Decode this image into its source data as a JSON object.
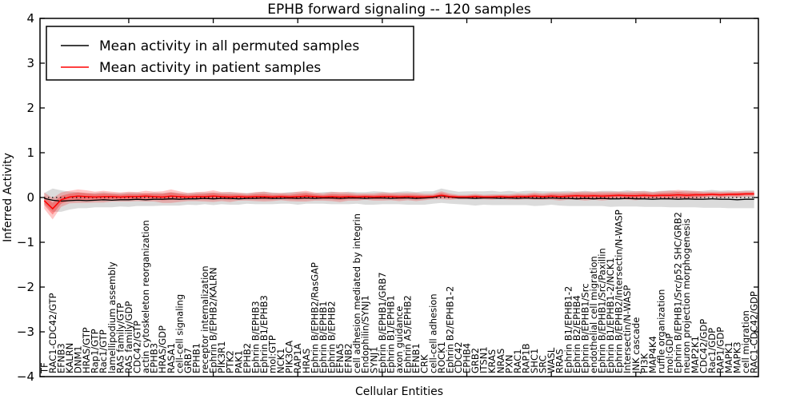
{
  "title": "EPHB forward signaling -- 120 samples",
  "axes": {
    "xlabel": "Cellular Entities",
    "ylabel": "Inferred Activity"
  },
  "legend": {
    "position": "upper left",
    "entries": [
      {
        "label": "Mean activity in all permuted samples",
        "color": "#000000"
      },
      {
        "label": "Mean activity in patient samples",
        "color": "#ff0000"
      }
    ]
  },
  "colors": {
    "permuted_line": "#000000",
    "patient_line": "#ff0000",
    "permuted_band": "#000000",
    "patient_band": "#ff0000",
    "reference_line": "#000000",
    "background": "#ffffff"
  },
  "chart_data": {
    "type": "line",
    "title": "EPHB forward signaling -- 120 samples",
    "xlabel": "Cellular Entities",
    "ylabel": "Inferred Activity",
    "ylim": [
      -4,
      4
    ],
    "yticks": [
      -4,
      -3,
      -2,
      -1,
      0,
      1,
      2,
      3,
      4
    ],
    "grid": false,
    "legend_position": "upper left",
    "x_major_tick_every": 10,
    "reference_line": {
      "y": 0,
      "style": "dotted",
      "color": "#000000"
    },
    "categories": [
      "TF",
      "RAC1-CDC42/GTP",
      "EFNB3",
      "KALRN",
      "DNM1",
      "HRAS/GTP",
      "Rap1/GTP",
      "Rac1/GTP",
      "lamellipodium assembly",
      "RAS family/GTP",
      "RAS family/GDP",
      "CDC42/GTP",
      "actin cytoskeleton reorganization",
      "EPHB3",
      "HRAS/GDP",
      "RASA1",
      "cell-cell signaling",
      "GRB7",
      "EPHB1",
      "receptor internalization",
      "Ephrin B/EPHB2/KALRN",
      "PIK3R1",
      "PTK2",
      "PAK1",
      "EPHB2",
      "Ephrin B/EPHB3",
      "Ephrin B1/EPHB3",
      "mol:GTP",
      "NCK1",
      "PIK3CA",
      "RAP1A",
      "HRAS",
      "Ephrin B/EPHB2/RasGAP",
      "Ephrin B/EPHB1",
      "Ephrin B/EPHB2",
      "EFNA5",
      "EFNB2",
      "cell adhesion mediated by integrin",
      "Endophilin/SYNJ1",
      "SYNJ1",
      "Ephrin B/EPHB1/GRB7",
      "Ephrin B1/EPHB1",
      "axon guidance",
      "Ephrin A5/EPHB2",
      "EFNB1",
      "CRK",
      "cell-cell adhesion",
      "ROCK1",
      "Ephrin B2/EPHB1-2",
      "CDC42",
      "EPHB4",
      "GRB2",
      "ITSN1",
      "KRAS",
      "NRAS",
      "PXN",
      "RAC1",
      "RAP1B",
      "SHC1",
      "SRC",
      "WASL",
      "RRAS",
      "Ephrin B1/EPHB1-2",
      "Ephrin B2/EPHB4",
      "Ephrin B/EPHB1/Src",
      "endothelial cell migration",
      "Ephrin B/EPHB1/Src/Paxillin",
      "Ephrin B1/EPHB1-2/NCK1",
      "Ephrin B/EPHB2/Intersectin/N-WASP",
      "Intersectin/N-WASP",
      "JNK cascade",
      "PI3K",
      "MAP4K4",
      "ruffle organization",
      "mol:GDP",
      "Ephrin B/EPHB1/Src/p52 SHC/GRB2",
      "neuron projection morphogenesis",
      "MAP2K1",
      "CDC42/GDP",
      "Rac1/GDP",
      "RAP1/GDP",
      "MAPK1",
      "MAPK3",
      "cell migration",
      "RAC1-CDC42/GDP"
    ],
    "series": [
      {
        "name": "Mean activity in all permuted samples",
        "color": "#000000",
        "line_width": 1.3,
        "band_color": "#000000",
        "band_opacity": 0.14,
        "values": [
          -0.02,
          -0.06,
          -0.08,
          -0.07,
          -0.06,
          -0.07,
          -0.06,
          -0.05,
          -0.06,
          -0.05,
          -0.05,
          -0.04,
          -0.05,
          -0.04,
          -0.04,
          -0.03,
          -0.04,
          -0.03,
          -0.03,
          -0.02,
          -0.03,
          -0.02,
          -0.02,
          -0.03,
          -0.02,
          -0.02,
          -0.01,
          -0.02,
          -0.02,
          -0.01,
          -0.02,
          -0.01,
          -0.02,
          -0.01,
          -0.01,
          -0.02,
          -0.01,
          -0.01,
          -0.02,
          -0.01,
          -0.01,
          -0.02,
          -0.01,
          -0.01,
          -0.02,
          -0.01,
          0.0,
          0.04,
          0.01,
          -0.01,
          -0.01,
          -0.02,
          -0.01,
          -0.01,
          -0.02,
          -0.01,
          -0.02,
          -0.01,
          -0.02,
          -0.02,
          -0.01,
          -0.02,
          -0.02,
          -0.03,
          -0.02,
          -0.03,
          -0.02,
          -0.03,
          -0.03,
          -0.02,
          -0.03,
          -0.03,
          -0.04,
          -0.03,
          -0.03,
          -0.04,
          -0.03,
          -0.04,
          -0.04,
          -0.03,
          -0.04,
          -0.04,
          -0.05,
          -0.04,
          -0.04
        ],
        "band_halfwidth": [
          0.12,
          0.26,
          0.24,
          0.2,
          0.18,
          0.17,
          0.16,
          0.17,
          0.16,
          0.15,
          0.16,
          0.15,
          0.14,
          0.15,
          0.14,
          0.15,
          0.14,
          0.13,
          0.14,
          0.13,
          0.14,
          0.13,
          0.14,
          0.13,
          0.12,
          0.13,
          0.14,
          0.13,
          0.12,
          0.13,
          0.14,
          0.13,
          0.12,
          0.13,
          0.14,
          0.13,
          0.14,
          0.13,
          0.14,
          0.15,
          0.14,
          0.13,
          0.14,
          0.15,
          0.14,
          0.15,
          0.14,
          0.16,
          0.15,
          0.14,
          0.15,
          0.16,
          0.15,
          0.16,
          0.15,
          0.16,
          0.15,
          0.16,
          0.17,
          0.16,
          0.15,
          0.16,
          0.17,
          0.16,
          0.17,
          0.16,
          0.17,
          0.18,
          0.17,
          0.18,
          0.17,
          0.18,
          0.17,
          0.18,
          0.19,
          0.18,
          0.19,
          0.18,
          0.19,
          0.2,
          0.19,
          0.2,
          0.19,
          0.2,
          0.2
        ]
      },
      {
        "name": "Mean activity in patient samples",
        "color": "#ff0000",
        "line_width": 1.5,
        "band_color": "#ff0000",
        "band_opacity": 0.22,
        "values": [
          -0.07,
          -0.25,
          -0.05,
          0.01,
          0.03,
          0.02,
          0.01,
          0.02,
          0.02,
          0.01,
          0.02,
          0.02,
          0.03,
          0.02,
          0.01,
          0.03,
          0.02,
          0.01,
          0.02,
          0.02,
          0.03,
          0.02,
          0.01,
          0.02,
          0.01,
          0.02,
          0.02,
          0.01,
          0.02,
          0.01,
          0.02,
          0.03,
          0.02,
          0.01,
          0.02,
          0.01,
          0.02,
          0.01,
          0.02,
          0.01,
          0.02,
          0.02,
          0.01,
          0.02,
          0.01,
          0.01,
          0.02,
          0.05,
          0.02,
          0.01,
          0.01,
          0.02,
          0.01,
          0.01,
          0.02,
          0.01,
          0.02,
          0.02,
          0.03,
          0.02,
          0.03,
          0.02,
          0.03,
          0.04,
          0.03,
          0.04,
          0.03,
          0.04,
          0.05,
          0.04,
          0.04,
          0.05,
          0.04,
          0.05,
          0.05,
          0.06,
          0.05,
          0.06,
          0.06,
          0.07,
          0.06,
          0.07,
          0.07,
          0.08,
          0.08
        ],
        "band_halfwidth": [
          0.18,
          0.24,
          0.16,
          0.14,
          0.15,
          0.14,
          0.12,
          0.13,
          0.11,
          0.1,
          0.11,
          0.1,
          0.12,
          0.11,
          0.13,
          0.15,
          0.12,
          0.09,
          0.1,
          0.11,
          0.13,
          0.1,
          0.11,
          0.09,
          0.08,
          0.1,
          0.11,
          0.09,
          0.08,
          0.09,
          0.11,
          0.12,
          0.09,
          0.08,
          0.1,
          0.11,
          0.09,
          0.08,
          0.07,
          0.08,
          0.09,
          0.08,
          0.09,
          0.08,
          0.09,
          0.07,
          0.06,
          0.09,
          0.07,
          0.05,
          0.05,
          0.06,
          0.05,
          0.06,
          0.05,
          0.06,
          0.07,
          0.06,
          0.08,
          0.07,
          0.08,
          0.09,
          0.08,
          0.09,
          0.1,
          0.09,
          0.1,
          0.09,
          0.08,
          0.09,
          0.1,
          0.09,
          0.08,
          0.09,
          0.1,
          0.11,
          0.1,
          0.09,
          0.07,
          0.06,
          0.07,
          0.06,
          0.07,
          0.06,
          0.06
        ]
      }
    ]
  }
}
